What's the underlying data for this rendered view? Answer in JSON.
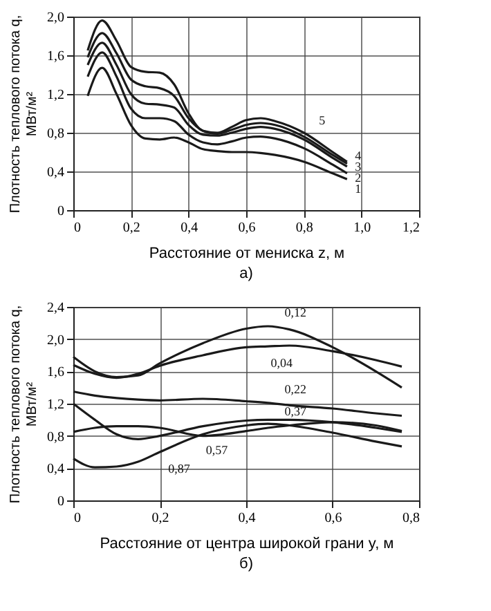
{
  "chart_data": [
    {
      "type": "line",
      "xlabel": "Расстояние от мениска z, м",
      "ylabel": "Плотность теплового потока q, МВт/м²",
      "annotations": [
        "а)"
      ],
      "xlim": [
        0,
        1.2
      ],
      "ylim": [
        0,
        2.0
      ],
      "xticks": [
        0,
        {
          "value": 0.2,
          "label": "0,2"
        },
        {
          "value": 0.4,
          "label": "0,4"
        },
        {
          "value": 0.6,
          "label": "0,6"
        },
        {
          "value": 0.8,
          "label": "0,8"
        },
        {
          "value": 1.0,
          "label": "1,0"
        },
        {
          "value": 1.2,
          "label": "1,2"
        }
      ],
      "yticks": [
        0,
        {
          "value": 0.4,
          "label": "0,4"
        },
        {
          "value": 0.8,
          "label": "0,8"
        },
        {
          "value": 1.2,
          "label": "1,2"
        },
        {
          "value": 1.6,
          "label": "1,6"
        },
        {
          "value": 2.0,
          "label": "2,0"
        }
      ],
      "grid": true,
      "legend": false,
      "marker": "none",
      "line_style": "solid",
      "x": [
        0.05,
        0.1,
        0.15,
        0.2,
        0.25,
        0.3,
        0.35,
        0.4,
        0.45,
        0.5,
        0.55,
        0.6,
        0.65,
        0.7,
        0.8,
        0.9,
        0.95
      ],
      "series": [
        {
          "name": "1",
          "color": "#1a1a1a",
          "values": [
            1.18,
            1.47,
            1.2,
            0.88,
            0.74,
            0.73,
            0.75,
            0.7,
            0.63,
            0.61,
            0.6,
            0.6,
            0.59,
            0.57,
            0.5,
            0.38,
            0.32
          ]
        },
        {
          "name": "2",
          "color": "#1a1a1a",
          "values": [
            1.38,
            1.63,
            1.38,
            1.05,
            0.95,
            0.95,
            0.92,
            0.78,
            0.7,
            0.68,
            0.71,
            0.75,
            0.76,
            0.74,
            0.64,
            0.47,
            0.38
          ]
        },
        {
          "name": "3",
          "color": "#1a1a1a",
          "values": [
            1.5,
            1.73,
            1.5,
            1.2,
            1.1,
            1.09,
            1.06,
            0.88,
            0.78,
            0.77,
            0.8,
            0.84,
            0.86,
            0.84,
            0.73,
            0.54,
            0.45
          ]
        },
        {
          "name": "4",
          "color": "#1a1a1a",
          "values": [
            1.58,
            1.83,
            1.62,
            1.35,
            1.28,
            1.26,
            1.18,
            0.95,
            0.82,
            0.79,
            0.83,
            0.88,
            0.9,
            0.88,
            0.76,
            0.57,
            0.48
          ]
        },
        {
          "name": "5",
          "color": "#1a1a1a",
          "values": [
            1.65,
            1.96,
            1.75,
            1.48,
            1.43,
            1.42,
            1.3,
            1.0,
            0.82,
            0.8,
            0.86,
            0.93,
            0.95,
            0.92,
            0.8,
            0.6,
            0.5
          ]
        }
      ]
    },
    {
      "type": "line",
      "xlabel": "Расстояние от центра широкой грани y, м",
      "ylabel": "Плотность теплового потока q, МВт/м²",
      "annotations": [
        "б)"
      ],
      "xlim": [
        0,
        0.8
      ],
      "ylim": [
        0,
        2.4
      ],
      "xticks": [
        0,
        {
          "value": 0.2,
          "label": "0,2"
        },
        {
          "value": 0.4,
          "label": "0,4"
        },
        {
          "value": 0.6,
          "label": "0,6"
        },
        {
          "value": 0.8,
          "label": "0,8"
        }
      ],
      "yticks": [
        0,
        {
          "value": 0.4,
          "label": "0,4"
        },
        {
          "value": 0.8,
          "label": "0,8"
        },
        {
          "value": 1.2,
          "label": "1,2"
        },
        {
          "value": 1.6,
          "label": "1,6"
        },
        {
          "value": 2.0,
          "label": "2,0"
        },
        {
          "value": 2.4,
          "label": "2,4"
        }
      ],
      "grid": true,
      "legend": false,
      "marker": "none",
      "line_style": "solid",
      "x": [
        0,
        0.05,
        0.1,
        0.15,
        0.2,
        0.3,
        0.4,
        0.45,
        0.5,
        0.6,
        0.7,
        0.76
      ],
      "series": [
        {
          "name": "0,12",
          "color": "#1a1a1a",
          "values": [
            1.78,
            1.6,
            1.53,
            1.55,
            1.7,
            1.95,
            2.13,
            2.16,
            2.12,
            1.9,
            1.6,
            1.4
          ]
        },
        {
          "name": "0,04",
          "color": "#1a1a1a",
          "values": [
            1.68,
            1.57,
            1.52,
            1.57,
            1.67,
            1.8,
            1.9,
            1.91,
            1.92,
            1.85,
            1.74,
            1.66
          ]
        },
        {
          "name": "0,22",
          "color": "#1a1a1a",
          "values": [
            1.35,
            1.3,
            1.27,
            1.25,
            1.24,
            1.26,
            1.23,
            1.21,
            1.18,
            1.14,
            1.08,
            1.05
          ]
        },
        {
          "name": "0,37",
          "color": "#1a1a1a",
          "values": [
            1.2,
            1.0,
            0.82,
            0.76,
            0.8,
            0.92,
            0.99,
            1.0,
            1.0,
            0.97,
            0.9,
            0.85
          ]
        },
        {
          "name": "0,57",
          "color": "#1a1a1a",
          "values": [
            0.85,
            0.9,
            0.92,
            0.92,
            0.9,
            0.8,
            0.86,
            0.9,
            0.93,
            0.97,
            0.93,
            0.86
          ]
        },
        {
          "name": "0,87",
          "color": "#1a1a1a",
          "values": [
            0.52,
            0.41,
            0.42,
            0.48,
            0.6,
            0.82,
            0.93,
            0.95,
            0.93,
            0.84,
            0.73,
            0.67
          ]
        }
      ]
    }
  ]
}
